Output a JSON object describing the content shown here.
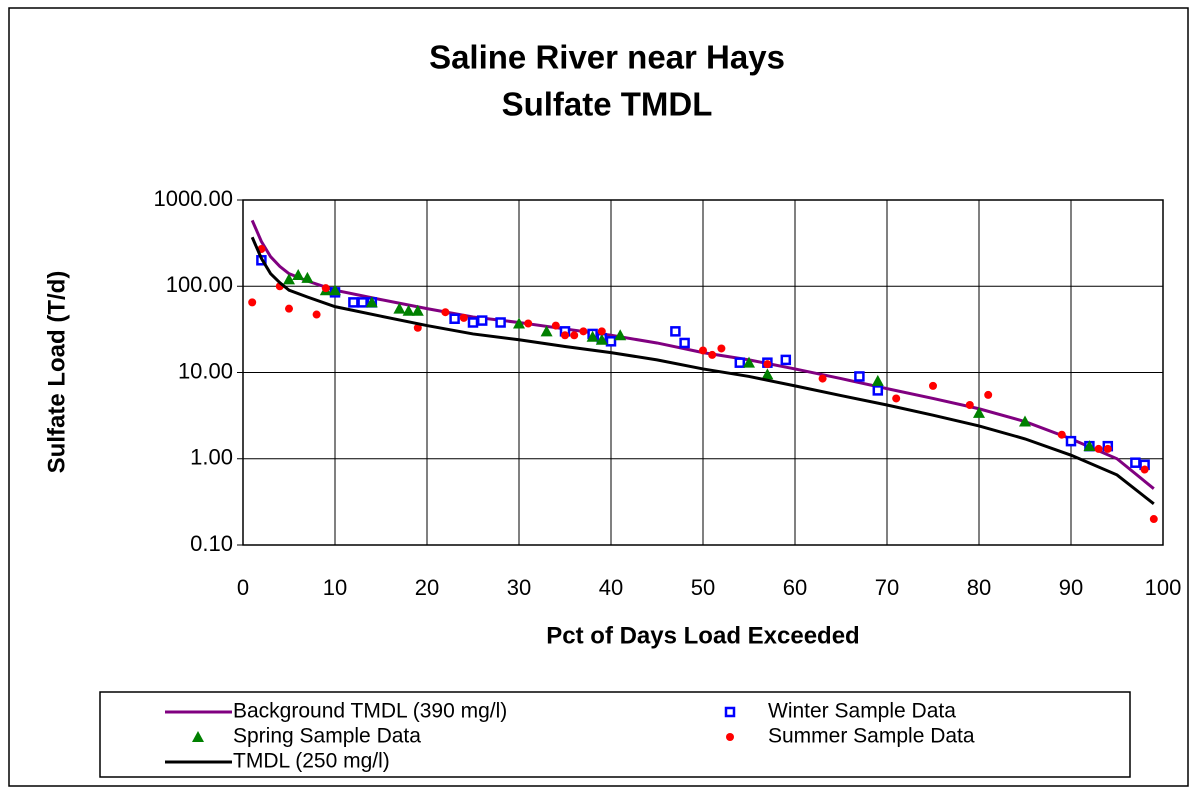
{
  "chart_data": {
    "type": "scatter",
    "title": [
      "Saline River near Hays",
      "Sulfate TMDL"
    ],
    "x_label": "Pct of Days Load Exceeded",
    "y_label": "Sulfate Load (T/d)",
    "xlim": [
      0,
      100
    ],
    "xticks": [
      0,
      10,
      20,
      30,
      40,
      50,
      60,
      70,
      80,
      90,
      100
    ],
    "ylim": [
      0.1,
      1000
    ],
    "yticks": [
      {
        "value": 0.1,
        "label": "0.10"
      },
      {
        "value": 1,
        "label": "1.00"
      },
      {
        "value": 10,
        "label": "10.00"
      },
      {
        "value": 100,
        "label": "100.00"
      },
      {
        "value": 1000,
        "label": "1000.00"
      }
    ],
    "log_y": true,
    "grid": true,
    "legend": "bottom",
    "series": [
      {
        "name": "Background TMDL (390 mg/l)",
        "color": "#800080",
        "marker": "line",
        "x": [
          1,
          2,
          3,
          4,
          5,
          7,
          10,
          15,
          20,
          25,
          30,
          35,
          40,
          45,
          50,
          55,
          60,
          65,
          70,
          75,
          80,
          85,
          90,
          95,
          99
        ],
        "values": [
          580,
          330,
          220,
          170,
          140,
          115,
          90,
          70,
          55,
          44,
          38,
          32,
          27,
          22,
          17,
          14,
          11,
          8.5,
          6.5,
          5,
          3.8,
          2.7,
          1.7,
          1.0,
          0.45
        ]
      },
      {
        "name": "Winter Sample Data",
        "color": "#0000ff",
        "marker": "square",
        "x": [
          2,
          10,
          12,
          13,
          14,
          23,
          25,
          26,
          28,
          35,
          38,
          39,
          40,
          47,
          48,
          54,
          57,
          59,
          67,
          69,
          90,
          92,
          94,
          97,
          98
        ],
        "values": [
          200,
          85,
          65,
          65,
          65,
          42,
          38,
          40,
          38,
          30,
          28,
          25,
          23,
          30,
          22,
          13,
          13,
          14,
          9,
          6.2,
          1.6,
          1.4,
          1.4,
          0.9,
          0.85
        ]
      },
      {
        "name": "Spring Sample Data",
        "color": "#008000",
        "marker": "triangle",
        "x": [
          5,
          6,
          7,
          9,
          10,
          14,
          17,
          18,
          19,
          30,
          33,
          38,
          39,
          41,
          55,
          57,
          69,
          80,
          85,
          92
        ],
        "values": [
          120,
          135,
          125,
          90,
          90,
          65,
          55,
          52,
          52,
          37,
          30,
          26,
          24,
          27,
          13,
          9.5,
          8,
          3.4,
          2.7,
          1.4
        ]
      },
      {
        "name": "Summer Sample Data",
        "color": "#ff0000",
        "marker": "circle",
        "x": [
          1,
          2,
          4,
          5,
          8,
          9,
          19,
          22,
          24,
          31,
          34,
          35,
          36,
          37,
          39,
          50,
          51,
          52,
          57,
          63,
          71,
          75,
          79,
          81,
          89,
          93,
          94,
          98,
          99
        ],
        "values": [
          65,
          270,
          100,
          55,
          47,
          95,
          33,
          50,
          43,
          37,
          35,
          27,
          27,
          30,
          30,
          18,
          16,
          19,
          12.5,
          8.5,
          5,
          7,
          4.2,
          5.5,
          1.9,
          1.3,
          1.3,
          0.75,
          0.2
        ]
      },
      {
        "name": "TMDL (250 mg/l)",
        "color": "#000000",
        "marker": "line",
        "x": [
          1,
          2,
          3,
          4,
          5,
          7,
          10,
          15,
          20,
          25,
          30,
          35,
          40,
          45,
          50,
          55,
          60,
          65,
          70,
          75,
          80,
          85,
          90,
          95,
          99
        ],
        "values": [
          370,
          210,
          140,
          110,
          90,
          75,
          58,
          45,
          35,
          28,
          24,
          20,
          17,
          14,
          11,
          9,
          7,
          5.4,
          4.2,
          3.2,
          2.4,
          1.7,
          1.1,
          0.65,
          0.3
        ]
      }
    ]
  }
}
